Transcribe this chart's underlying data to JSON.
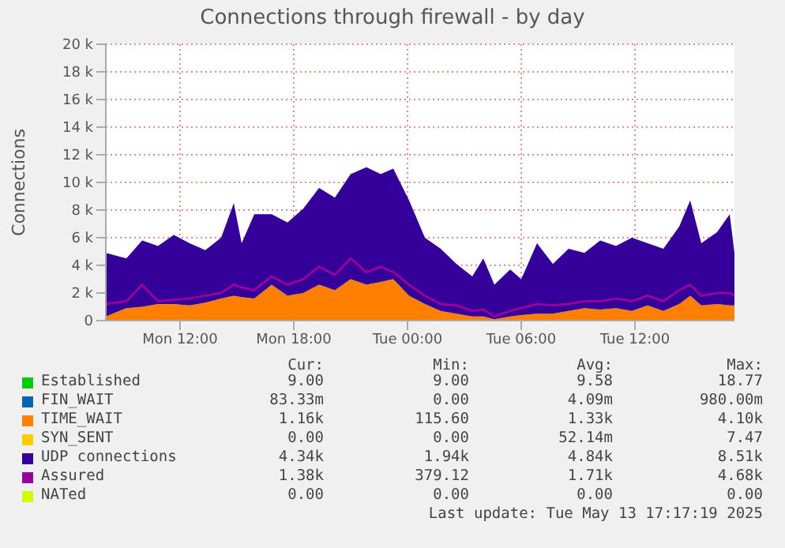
{
  "chart_data": {
    "type": "area",
    "title": "Connections through firewall - by day",
    "ylabel": "Connections",
    "stacked": true,
    "grid": true,
    "legend": "bottom",
    "x": [
      "2025-05-12T08:05",
      "2025-05-12T09:10",
      "2025-05-12T10:00",
      "2025-05-12T10:50",
      "2025-05-12T11:40",
      "2025-05-12T12:30",
      "2025-05-12T13:20",
      "2025-05-12T14:10",
      "2025-05-12T14:50",
      "2025-05-12T15:15",
      "2025-05-12T15:55",
      "2025-05-12T16:50",
      "2025-05-12T17:40",
      "2025-05-12T18:30",
      "2025-05-12T19:20",
      "2025-05-12T20:10",
      "2025-05-12T21:00",
      "2025-05-12T21:50",
      "2025-05-12T22:35",
      "2025-05-12T23:15",
      "2025-05-13T00:05",
      "2025-05-13T00:55",
      "2025-05-13T01:45",
      "2025-05-13T02:35",
      "2025-05-13T03:25",
      "2025-05-13T04:00",
      "2025-05-13T04:35",
      "2025-05-13T05:25",
      "2025-05-13T06:00",
      "2025-05-13T06:50",
      "2025-05-13T07:40",
      "2025-05-13T08:30",
      "2025-05-13T09:20",
      "2025-05-13T10:10",
      "2025-05-13T11:00",
      "2025-05-13T11:50",
      "2025-05-13T12:40",
      "2025-05-13T13:30",
      "2025-05-13T14:20",
      "2025-05-13T14:55",
      "2025-05-13T15:30",
      "2025-05-13T16:20",
      "2025-05-13T17:00",
      "2025-05-13T17:15"
    ],
    "xlim": [
      "2025-05-12T08:05",
      "2025-05-13T17:15"
    ],
    "xticks": [
      {
        "value": "2025-05-12T12:00",
        "label": "Mon 12:00"
      },
      {
        "value": "2025-05-12T18:00",
        "label": "Mon 18:00"
      },
      {
        "value": "2025-05-13T00:00",
        "label": "Tue 00:00"
      },
      {
        "value": "2025-05-13T06:00",
        "label": "Tue 06:00"
      },
      {
        "value": "2025-05-13T12:00",
        "label": "Tue 12:00"
      }
    ],
    "ylim": [
      0,
      20000
    ],
    "yticks": [
      0,
      {
        "value": 2000,
        "label": "2 k"
      },
      {
        "value": 4000,
        "label": "4 k"
      },
      {
        "value": 6000,
        "label": "6 k"
      },
      {
        "value": 8000,
        "label": "8 k"
      },
      {
        "value": 10000,
        "label": "10 k"
      },
      {
        "value": 12000,
        "label": "12 k"
      },
      {
        "value": 14000,
        "label": "14 k"
      },
      {
        "value": 16000,
        "label": "16 k"
      },
      {
        "value": 18000,
        "label": "18 k"
      },
      {
        "value": 20000,
        "label": "20 k"
      }
    ],
    "series": [
      {
        "name": "Established",
        "color": "#00cc00",
        "values": [
          null,
          null,
          null,
          null,
          null,
          null,
          null,
          null,
          null,
          null,
          null,
          null,
          null,
          null,
          null,
          null,
          null,
          null,
          null,
          null,
          null,
          null,
          null,
          null,
          null,
          null,
          null,
          null,
          null,
          null,
          null,
          null,
          null,
          null,
          null,
          null,
          null,
          null,
          null,
          null,
          null,
          null,
          null,
          null
        ]
      },
      {
        "name": "FIN_WAIT",
        "color": "#0066b3",
        "values": [
          null,
          null,
          null,
          null,
          null,
          null,
          null,
          null,
          null,
          null,
          null,
          null,
          null,
          null,
          null,
          null,
          null,
          null,
          null,
          null,
          null,
          null,
          null,
          null,
          null,
          null,
          null,
          null,
          null,
          null,
          null,
          null,
          null,
          null,
          null,
          null,
          null,
          null,
          null,
          null,
          null,
          null,
          null,
          null
        ]
      },
      {
        "name": "TIME_WAIT",
        "color": "#ff8000",
        "values": [
          300,
          900,
          1000,
          1200,
          1200,
          1100,
          1300,
          1600,
          1800,
          1700,
          1600,
          2600,
          1800,
          2000,
          2600,
          2200,
          3000,
          2600,
          2800,
          3000,
          1800,
          1200,
          700,
          500,
          300,
          300,
          100,
          300,
          400,
          500,
          500,
          700,
          900,
          800,
          900,
          700,
          1100,
          700,
          1200,
          1800,
          1100,
          1200,
          1100,
          1100
        ]
      },
      {
        "name": "SYN_SENT",
        "color": "#ffcc00",
        "values": [
          null,
          null,
          null,
          null,
          null,
          null,
          null,
          null,
          null,
          null,
          null,
          null,
          null,
          null,
          null,
          null,
          null,
          null,
          null,
          null,
          null,
          null,
          null,
          null,
          null,
          null,
          null,
          null,
          null,
          null,
          null,
          null,
          null,
          null,
          null,
          null,
          null,
          null,
          null,
          null,
          null,
          null,
          null,
          null
        ]
      },
      {
        "name": "UDP connections",
        "color": "#330099",
        "values": [
          4600,
          3600,
          4800,
          4200,
          5000,
          4500,
          3800,
          4400,
          6700,
          3900,
          6100,
          5100,
          5300,
          6100,
          7000,
          6700,
          7600,
          8500,
          7800,
          8000,
          6900,
          4800,
          4500,
          3600,
          2900,
          4200,
          2500,
          3400,
          2600,
          5100,
          3600,
          4500,
          4000,
          5000,
          4500,
          5300,
          4500,
          4500,
          5600,
          6900,
          4500,
          5200,
          6600,
          3800
        ]
      },
      {
        "name": "Assured",
        "type": "line",
        "color": "#990099",
        "values": [
          1200,
          1400,
          2600,
          1400,
          1500,
          1600,
          1800,
          2000,
          2600,
          2400,
          2200,
          3200,
          2600,
          3000,
          3900,
          3300,
          4500,
          3500,
          3900,
          3500,
          2600,
          1800,
          1200,
          1100,
          700,
          800,
          300,
          700,
          900,
          1200,
          1100,
          1200,
          1400,
          1400,
          1600,
          1400,
          1800,
          1400,
          2200,
          2600,
          1800,
          2000,
          2000,
          1800
        ]
      },
      {
        "name": "NATed",
        "type": "line",
        "color": "#ccff00",
        "values": [
          null,
          null,
          null,
          null,
          null,
          null,
          null,
          null,
          null,
          null,
          null,
          null,
          null,
          null,
          null,
          null,
          null,
          null,
          null,
          null,
          null,
          null,
          null,
          null,
          null,
          null,
          null,
          null,
          null,
          null,
          null,
          null,
          null,
          null,
          null,
          null,
          null,
          null,
          null,
          null,
          null,
          null,
          null,
          null
        ]
      }
    ],
    "annotations": [
      "Cur:",
      "Min:",
      "Avg:",
      "Max:",
      "9.00",
      "9.00",
      "9.58",
      "18.77",
      "83.33m",
      "0.00",
      "4.09m",
      "980.00m",
      "1.16k",
      "115.60",
      "1.33k",
      "4.10k",
      "0.00",
      "0.00",
      "52.14m",
      "7.47",
      "4.34k",
      "1.94k",
      "4.84k",
      "8.51k",
      "1.38k",
      "379.12",
      "1.71k",
      "4.68k",
      "0.00",
      "0.00",
      "0.00",
      "0.00",
      "Last update: Tue May 13 17:17:19 2025"
    ]
  }
}
